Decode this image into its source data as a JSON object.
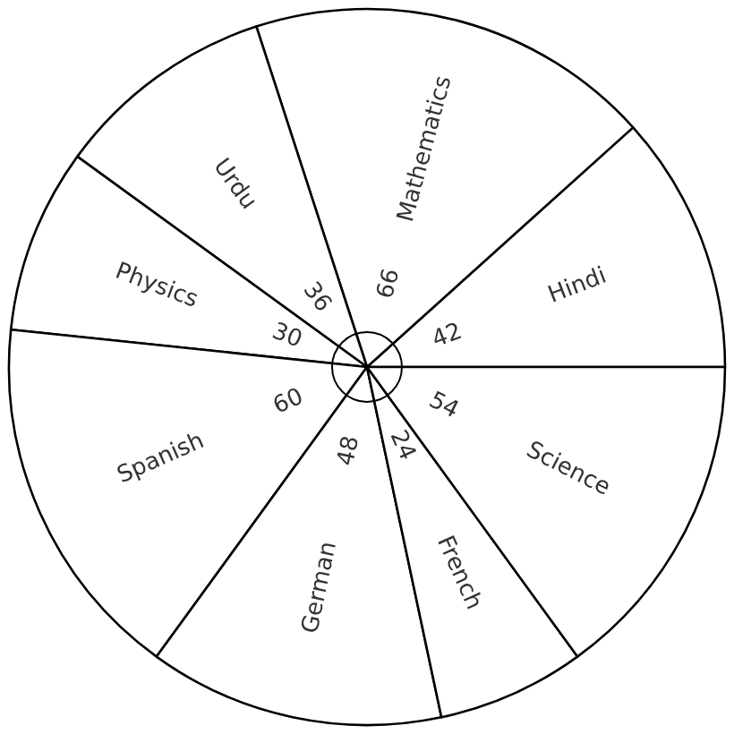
{
  "chart_data": {
    "type": "pie",
    "categories": [
      "Hindi",
      "Mathematics",
      "Urdu",
      "Physics",
      "Spanish",
      "German",
      "French",
      "Science"
    ],
    "values": [
      42,
      66,
      36,
      30,
      60,
      48,
      24,
      54
    ],
    "colors": [
      "#ffffff",
      "#ffffff",
      "#ffffff",
      "#ffffff",
      "#ffffff",
      "#ffffff",
      "#ffffff",
      "#ffffff"
    ],
    "data_labels": true
  }
}
